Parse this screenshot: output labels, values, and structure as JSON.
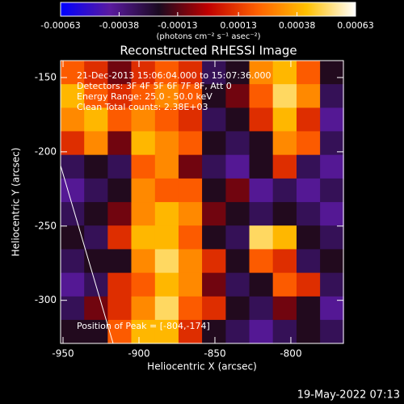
{
  "chart_data": {
    "type": "heatmap",
    "title": "Reconstructed RHESSI Image",
    "x_label": "Heliocentric X (arcsec)",
    "y_label": "Heliocentric Y (arcsec)",
    "colorbar_label": "(photons cm⁻² s⁻¹ asec⁻²)",
    "annotations": [
      "21-Dec-2013 15:06:04.000 to 15:07:36.000",
      "Detectors: 3F 4F 5F 6F 7F 8F, Att 0",
      "Energy Range: 25.0 - 50.0 keV",
      "Clean     Total counts: 2.38E+03"
    ],
    "peak_label": "Position of Peak = [-804,-174]",
    "footer": "19-May-2022 07:13",
    "xlim": [
      -951.6,
      -765.4
    ],
    "ylim": [
      -329,
      -138.6
    ],
    "xticks": [
      -950,
      -900,
      -850,
      -800
    ],
    "yticks": [
      -150,
      -200,
      -250,
      -300
    ],
    "zlim": [
      -0.00063,
      0.00063
    ],
    "zticks": [
      -0.00063,
      -0.00038,
      -0.00013,
      0.00013,
      0.00038,
      0.00063
    ],
    "colorscale": [
      "#0000ff",
      "#5a1aa0",
      "#1a0a20",
      "#c00000",
      "#ff6000",
      "#ffc000",
      "#ffffff"
    ],
    "x": [
      -943.8,
      -928.3,
      -912.8,
      -897.3,
      -881.7,
      -866.2,
      -850.7,
      -835.1,
      -819.6,
      -804.1,
      -788.5,
      -773.0
    ],
    "y": [
      -146.5,
      -162.4,
      -178.3,
      -194.1,
      -210.0,
      -225.9,
      -241.8,
      -257.6,
      -273.5,
      -289.4,
      -305.3,
      -321.1
    ],
    "z": [
      [
        0.0002,
        0.0001,
        -0.0001,
        0.0001,
        0.0002,
        0.0001,
        -0.0003,
        -0.0002,
        0.0003,
        0.0004,
        0.0002,
        -0.0002
      ],
      [
        0.0004,
        0.0002,
        0.0001,
        0.0002,
        0.0003,
        0.0002,
        -0.0002,
        -0.0001,
        0.0002,
        0.0005,
        0.0003,
        -0.0003
      ],
      [
        0.0003,
        0.0004,
        0.0002,
        0.0003,
        0.0002,
        0.0001,
        -0.0003,
        -0.0002,
        0.0001,
        0.0004,
        0.0001,
        -0.0004
      ],
      [
        0.0001,
        0.0003,
        -0.0001,
        0.0004,
        0.0003,
        0.0002,
        -0.0002,
        -0.0003,
        -0.0002,
        0.0003,
        0.0002,
        -0.0003
      ],
      [
        -0.0003,
        -0.0002,
        -0.0003,
        0.0002,
        0.0003,
        -0.0001,
        -0.0003,
        -0.0004,
        -0.0002,
        0.0001,
        -0.0003,
        -0.0004
      ],
      [
        -0.0004,
        -0.0003,
        -0.0002,
        0.0003,
        0.0002,
        0.0002,
        -0.0002,
        -0.0001,
        -0.0004,
        -0.0003,
        -0.0004,
        -0.0003
      ],
      [
        -0.0003,
        -0.0002,
        -0.0001,
        0.0003,
        0.0004,
        0.0003,
        -0.0001,
        -0.0002,
        -0.0003,
        -0.0002,
        -0.0003,
        -0.0004
      ],
      [
        -0.0002,
        -0.0003,
        0.0001,
        0.0004,
        0.0004,
        0.0002,
        -0.0002,
        -0.0003,
        0.0005,
        0.0004,
        -0.0002,
        -0.0003
      ],
      [
        -0.0003,
        -0.0002,
        -0.0002,
        0.0003,
        0.0005,
        0.0003,
        0.0001,
        -0.0002,
        0.0002,
        0.0001,
        -0.0003,
        -0.0002
      ],
      [
        -0.0004,
        -0.0003,
        0.0001,
        0.0002,
        0.0004,
        0.0003,
        -0.0001,
        -0.0003,
        -0.0002,
        0.0002,
        0.0001,
        -0.0003
      ],
      [
        -0.0003,
        -0.0001,
        0.0001,
        0.0003,
        0.0005,
        0.0002,
        0.0001,
        -0.0002,
        -0.0003,
        -0.0001,
        -0.0002,
        -0.0004
      ],
      [
        -0.0002,
        -0.0002,
        0.0002,
        0.0004,
        0.0004,
        0.0001,
        -0.0002,
        -0.0003,
        -0.0004,
        -0.0003,
        -0.0002,
        -0.0003
      ]
    ]
  }
}
